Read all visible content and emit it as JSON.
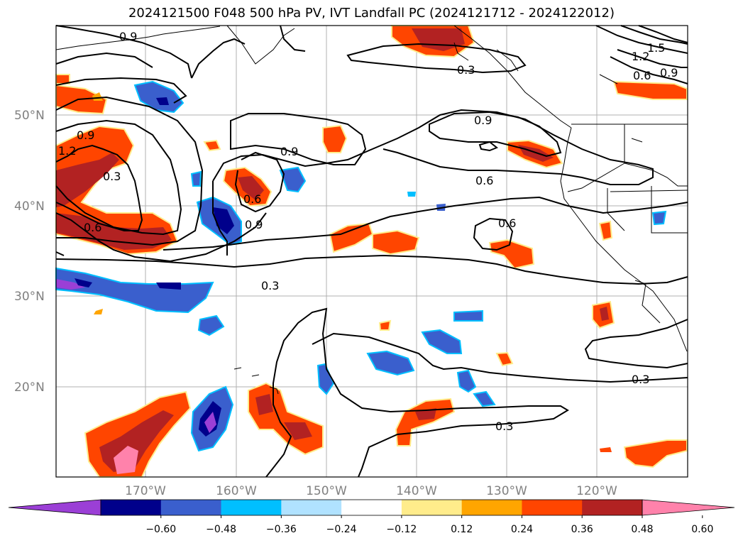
{
  "title": "2024121500 F048 500 hPa PV, IVT Landfall PC (2024121712 - 2024122012)",
  "lat_labels": [
    "50°N",
    "40°N",
    "30°N",
    "20°N"
  ],
  "lon_labels": [
    "170°W",
    "160°W",
    "150°W",
    "140°W",
    "130°W",
    "120°W"
  ],
  "contour_labels": [
    "0.9",
    "0.9",
    "1.2",
    "0.3",
    "0.6",
    "0.9",
    "0.6",
    "0.9",
    "0.3",
    "0.9",
    "0.6",
    "0.6",
    "0.3",
    "0.3",
    "1.5",
    "1.2",
    "0.9",
    "0.6",
    "0.3"
  ],
  "colorbar": {
    "tick_labels": [
      "−0.60",
      "−0.48",
      "−0.36",
      "−0.24",
      "−0.12",
      "0.12",
      "0.24",
      "0.36",
      "0.48",
      "0.60"
    ],
    "colors": [
      "#9b3fd6",
      "#00008b",
      "#3a5fcd",
      "#00bfff",
      "#b0e2ff",
      "#ffffff",
      "#ffec8b",
      "#ffa500",
      "#ff4500",
      "#b22222",
      "#ff82ab"
    ]
  },
  "colors": {
    "positive_low": "#ffec8b",
    "positive_mid": "#ffa500",
    "positive_high": "#ff4500",
    "positive_higher": "#b22222",
    "positive_max": "#ff82ab",
    "negative_low": "#b0e2ff",
    "negative_mid": "#00bfff",
    "negative_high": "#3a5fcd",
    "negative_higher": "#00008b",
    "negative_max": "#9b3fd6"
  }
}
